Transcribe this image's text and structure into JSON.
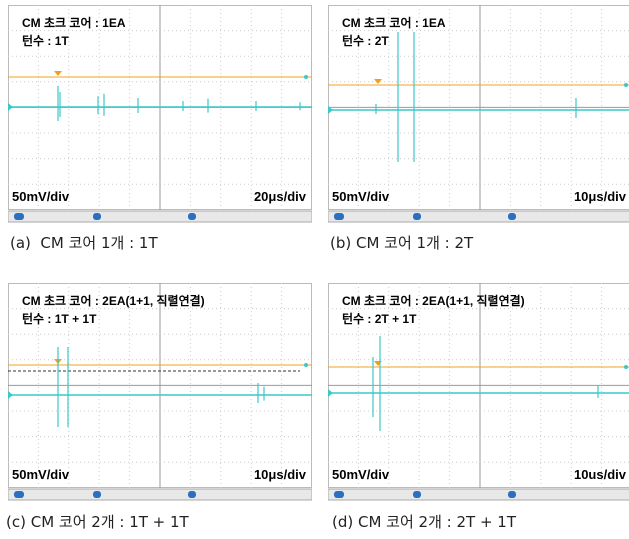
{
  "panels": [
    {
      "line1": "CM 초크 코어 : 1EA",
      "line2": "턴수 : 1T",
      "vdiv": "50mV/div",
      "tdiv": "20μs/div",
      "caption": "(a)  CM 코어 1개 : 1T"
    },
    {
      "line1": "CM 초크 코어 : 1EA",
      "line2": "턴수 : 2T",
      "vdiv": "50mV/div",
      "tdiv": "10μs/div",
      "caption": "(b) CM 코어 1개 : 2T"
    },
    {
      "line1": "CM 초크 코어 : 2EA(1+1, 직렬연결)",
      "line2": "턴수 : 1T + 1T",
      "vdiv": "50mV/div",
      "tdiv": "10μs/div",
      "caption": "(c) CM 코어 2개 : 1T + 1T"
    },
    {
      "line1": "CM 초크 코어 : 2EA(1+1, 직렬연결)",
      "line2": "턴수 : 2T + 1T",
      "vdiv": "50mV/div",
      "tdiv": "10us/div",
      "caption": "(d) CM 코어 2개 : 2T + 1T"
    }
  ]
}
